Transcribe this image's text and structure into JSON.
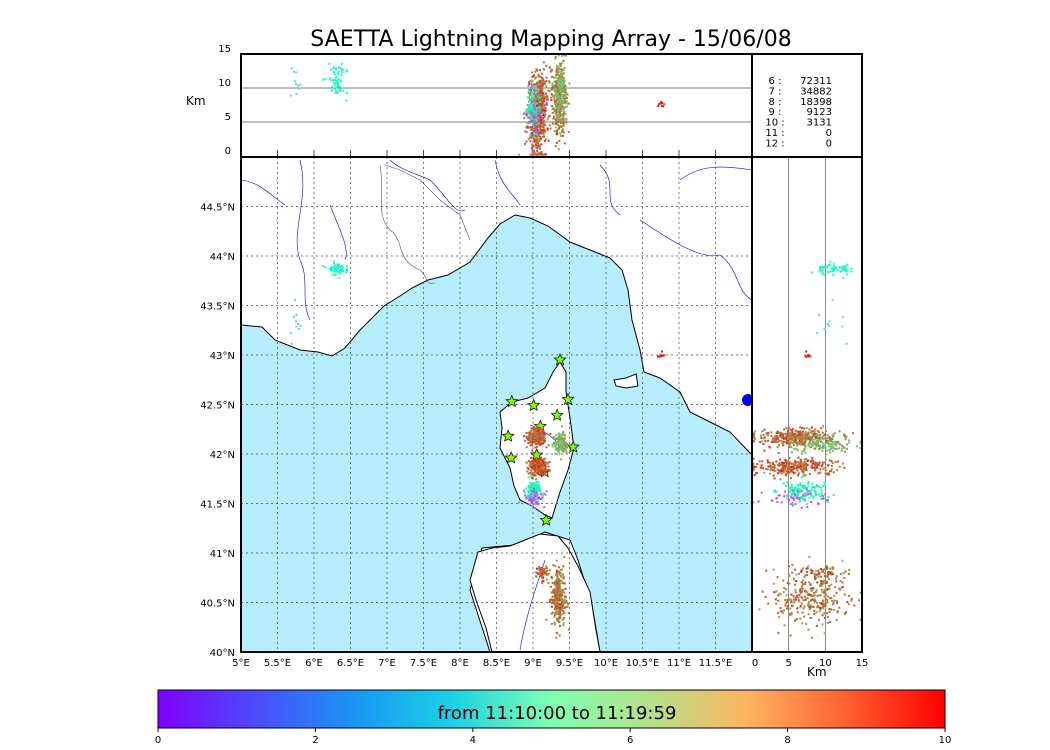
{
  "chart_data": {
    "type": "scatter",
    "title": "SAETTA Lightning Mapping Array - 15/06/08",
    "map": {
      "lon_range": [
        5,
        12
      ],
      "lat_range": [
        40,
        45
      ],
      "lon_ticks": [
        "5°E",
        "5.5°E",
        "6°E",
        "6.5°E",
        "7°E",
        "7.5°E",
        "8°E",
        "8.5°E",
        "9°E",
        "9.5°E",
        "10°E",
        "10.5°E",
        "11°E",
        "11.5°E"
      ],
      "lon_tick_values": [
        5,
        5.5,
        6,
        6.5,
        7,
        7.5,
        8,
        8.5,
        9,
        9.5,
        10,
        10.5,
        11,
        11.5
      ],
      "lat_ticks": [
        "40°N",
        "40.5°N",
        "41°N",
        "41.5°N",
        "42°N",
        "42.5°N",
        "43°N",
        "43.5°N",
        "44°N",
        "44.5°N"
      ],
      "lat_tick_values": [
        40,
        40.5,
        41,
        41.5,
        42,
        42.5,
        43,
        43.5,
        44,
        44.5
      ],
      "grid": true
    },
    "altitude_axis": {
      "label": "Km",
      "range": [
        0,
        15
      ],
      "ticks": [
        "0",
        "5",
        "10",
        "15"
      ],
      "tick_values": [
        0,
        5,
        10,
        15
      ]
    },
    "stations": [
      [
        9.37,
        42.95
      ],
      [
        8.71,
        42.53
      ],
      [
        9.01,
        42.49
      ],
      [
        9.48,
        42.55
      ],
      [
        9.33,
        42.39
      ],
      [
        9.1,
        42.28
      ],
      [
        8.66,
        42.18
      ],
      [
        9.55,
        42.07
      ],
      [
        9.05,
        41.99
      ],
      [
        8.7,
        41.96
      ],
      [
        9.16,
        41.82
      ],
      [
        9.18,
        41.33
      ]
    ],
    "source_clusters": [
      {
        "lon": 9.05,
        "lat": 42.17,
        "alt": 6,
        "sd_lon": 0.06,
        "sd_lat": 0.04,
        "sd_alt": 2.8,
        "n": 320,
        "time": 8.6
      },
      {
        "lon": 9.07,
        "lat": 41.87,
        "alt": 6,
        "sd_lon": 0.06,
        "sd_lat": 0.04,
        "sd_alt": 2.8,
        "n": 260,
        "time": 8.8
      },
      {
        "lon": 9.0,
        "lat": 41.62,
        "alt": 7,
        "sd_lon": 0.05,
        "sd_lat": 0.06,
        "sd_alt": 1.5,
        "n": 120,
        "time": 5.0
      },
      {
        "lon": 9.02,
        "lat": 41.57,
        "alt": 6,
        "sd_lon": 0.08,
        "sd_lat": 0.05,
        "sd_alt": 2.0,
        "n": 50,
        "time": 1.0
      },
      {
        "lon": 9.35,
        "lat": 40.55,
        "alt": 8,
        "sd_lon": 0.05,
        "sd_lat": 0.15,
        "sd_alt": 2.5,
        "n": 300,
        "time": 8.5
      },
      {
        "lon": 9.12,
        "lat": 40.8,
        "alt": 9,
        "sd_lon": 0.04,
        "sd_lat": 0.04,
        "sd_alt": 1.5,
        "n": 60,
        "time": 8.7
      },
      {
        "lon": 9.38,
        "lat": 42.1,
        "alt": 9.5,
        "sd_lon": 0.05,
        "sd_lat": 0.05,
        "sd_alt": 2.2,
        "n": 150,
        "time": 7.5
      },
      {
        "lon": 6.3,
        "lat": 43.87,
        "alt": 11,
        "sd_lon": 0.06,
        "sd_lat": 0.03,
        "sd_alt": 1.2,
        "n": 60,
        "time": 4.5
      },
      {
        "lon": 10.75,
        "lat": 43.0,
        "alt": 8,
        "sd_lon": 0.02,
        "sd_lat": 0.02,
        "sd_alt": 0.4,
        "n": 8,
        "time": 9.5
      },
      {
        "lon": 5.75,
        "lat": 43.35,
        "alt": 11,
        "sd_lon": 0.05,
        "sd_lat": 0.1,
        "sd_alt": 1.5,
        "n": 10,
        "time": 3.0
      }
    ],
    "stats": [
      {
        "label": "6 :",
        "value": "72311",
        "highlight": false
      },
      {
        "label": "7 :",
        "value": "34882",
        "highlight": true
      },
      {
        "label": "8 :",
        "value": "18398",
        "highlight": false
      },
      {
        "label": "9 :",
        "value": "9123",
        "highlight": false
      },
      {
        "label": "10 :",
        "value": "3131",
        "highlight": false
      },
      {
        "label": "11 :",
        "value": "0",
        "highlight": false
      },
      {
        "label": "12 :",
        "value": "0",
        "highlight": false
      }
    ],
    "colorbar": {
      "label": "from 11:10:00 to 11:19:59",
      "range": [
        0,
        10
      ],
      "ticks": [
        "0",
        "2",
        "4",
        "6",
        "8",
        "10"
      ],
      "tick_values": [
        0,
        2,
        4,
        6,
        8,
        10
      ],
      "colormap": "rainbow"
    }
  },
  "colors": {
    "sea": "#b7eefe",
    "highlight": "#ff0000",
    "river": "#0000ff",
    "border": "#555555"
  }
}
